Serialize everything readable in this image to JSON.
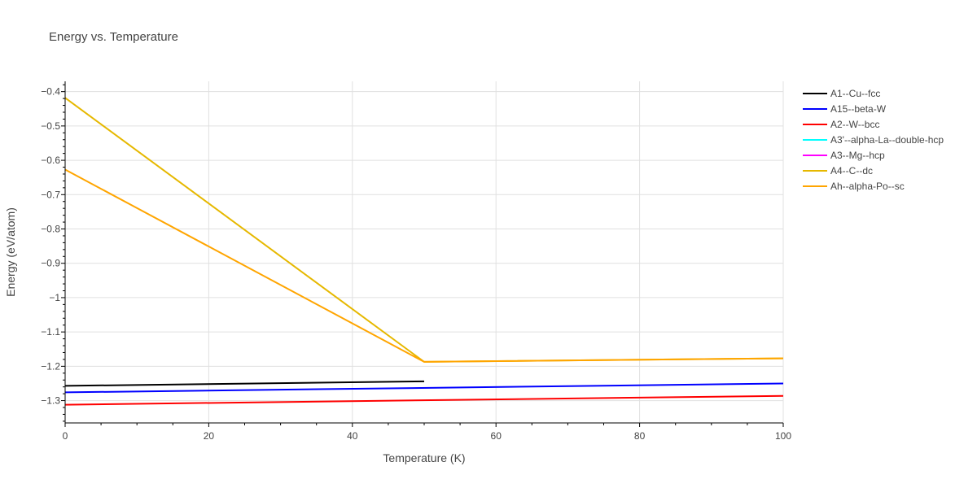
{
  "chart_data": {
    "type": "line",
    "title": "Energy vs. Temperature",
    "xlabel": "Temperature (K)",
    "ylabel": "Energy (eV/atom)",
    "xlim": [
      0,
      100
    ],
    "ylim": [
      -1.365,
      -0.37
    ],
    "xticks": [
      0,
      20,
      40,
      60,
      80,
      100
    ],
    "xtick_labels": [
      "0",
      "20",
      "40",
      "60",
      "80",
      "100"
    ],
    "yticks": [
      -0.4,
      -0.5,
      -0.6,
      -0.7,
      -0.8,
      -0.9,
      -1,
      -1.1,
      -1.2,
      -1.3
    ],
    "ytick_labels": [
      "−0.4",
      "−0.5",
      "−0.6",
      "−0.7",
      "−0.8",
      "−0.9",
      "−1",
      "−1.1",
      "−1.2",
      "−1.3"
    ],
    "grid": true,
    "legend_position": "right",
    "series": [
      {
        "name": "A1--Cu--fcc",
        "color": "#000000",
        "x": [
          0,
          50
        ],
        "y": [
          -1.257,
          -1.244
        ]
      },
      {
        "name": "A15--beta-W",
        "color": "#0000ff",
        "x": [
          0,
          100
        ],
        "y": [
          -1.276,
          -1.25
        ]
      },
      {
        "name": "A2--W--bcc",
        "color": "#ff0000",
        "x": [
          0,
          100
        ],
        "y": [
          -1.312,
          -1.286
        ]
      },
      {
        "name": "A3'--alpha-La--double-hcp",
        "color": "#00ffff",
        "x": [],
        "y": []
      },
      {
        "name": "A3--Mg--hcp",
        "color": "#ff00ff",
        "x": [],
        "y": []
      },
      {
        "name": "A4--C--dc",
        "color": "#e6b800",
        "x": [
          0,
          50,
          100
        ],
        "y": [
          -0.418,
          -1.187,
          -1.177
        ]
      },
      {
        "name": "Ah--alpha-Po--sc",
        "color": "#ffa500",
        "x": [
          0,
          50,
          100
        ],
        "y": [
          -0.627,
          -1.187,
          -1.177
        ]
      }
    ]
  }
}
